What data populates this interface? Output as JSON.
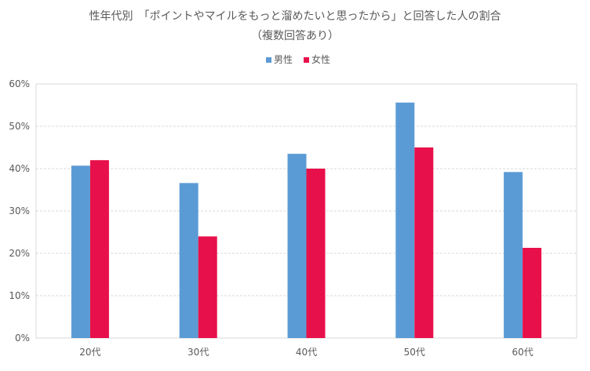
{
  "chart_data": {
    "type": "bar",
    "title": "性年代別　「ポイントやマイルをもっと溜めたいと思ったから」と回答した人の割合",
    "subtitle": "（複数回答あり）",
    "categories": [
      "20代",
      "30代",
      "40代",
      "50代",
      "60代"
    ],
    "series": [
      {
        "name": "男性",
        "values": [
          40.7,
          36.6,
          43.5,
          55.6,
          39.2
        ],
        "color": "#5b9bd5"
      },
      {
        "name": "女性",
        "values": [
          42.0,
          24.0,
          40.0,
          45.0,
          21.3
        ],
        "color": "#e8104a"
      }
    ],
    "ylim": [
      0,
      60
    ],
    "yticks": [
      "0%",
      "10%",
      "20%",
      "30%",
      "40%",
      "50%",
      "60%"
    ],
    "grid": true,
    "legend_position": "top"
  }
}
